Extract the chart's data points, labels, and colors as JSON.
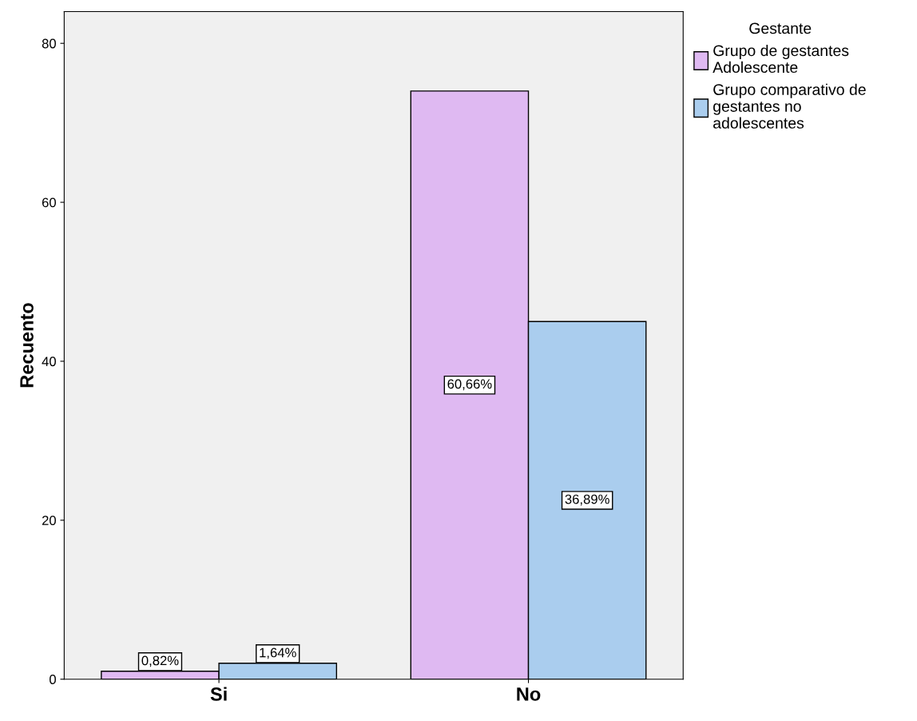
{
  "chart_data": {
    "type": "bar",
    "ylabel": "Recuento",
    "legend_title": "Gestante",
    "categories": [
      "Si",
      "No"
    ],
    "series": [
      {
        "name": "Grupo de gestantes Adolescente",
        "color": "#dfb9f2",
        "values": [
          1,
          74
        ]
      },
      {
        "name": "Grupo comparativo de gestantes no adolescentes",
        "color": "#aacdee",
        "values": [
          2,
          45
        ]
      }
    ],
    "annotations": [
      {
        "text": "0,82%",
        "y": 1
      },
      {
        "text": "1,64%",
        "y": 2
      },
      "60,66%",
      "36,89%"
    ],
    "ylim": [
      0,
      84
    ],
    "yticks": [
      0,
      20,
      40,
      60,
      80
    ],
    "grid": false,
    "legend": "top right"
  }
}
